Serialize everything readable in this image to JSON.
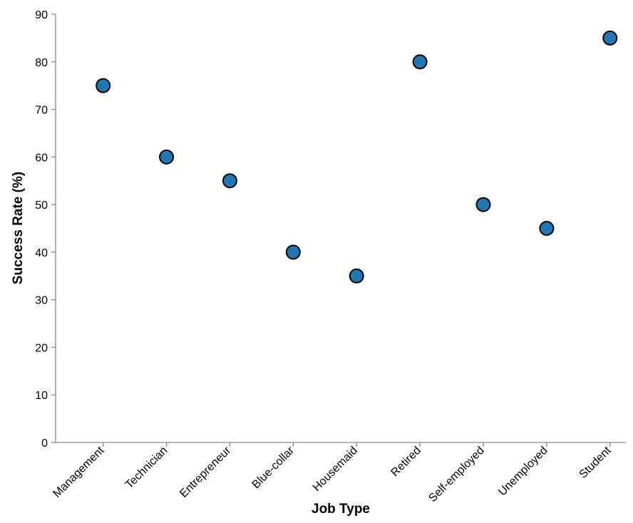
{
  "chart_data": {
    "type": "scatter",
    "title": "",
    "xlabel": "Job Type",
    "ylabel": "Success Rate (%)",
    "categories": [
      "Management",
      "Technician",
      "Entrepreneur",
      "Blue-collar",
      "Housemaid",
      "Retired",
      "Self-employed",
      "Unemployed",
      "Student"
    ],
    "values": [
      75,
      60,
      55,
      40,
      35,
      80,
      50,
      45,
      85
    ],
    "ylim": [
      0,
      90
    ],
    "yticks": [
      0,
      10,
      20,
      30,
      40,
      50,
      60,
      70,
      80,
      90
    ],
    "grid": false,
    "point_color": "#1f77b4"
  }
}
